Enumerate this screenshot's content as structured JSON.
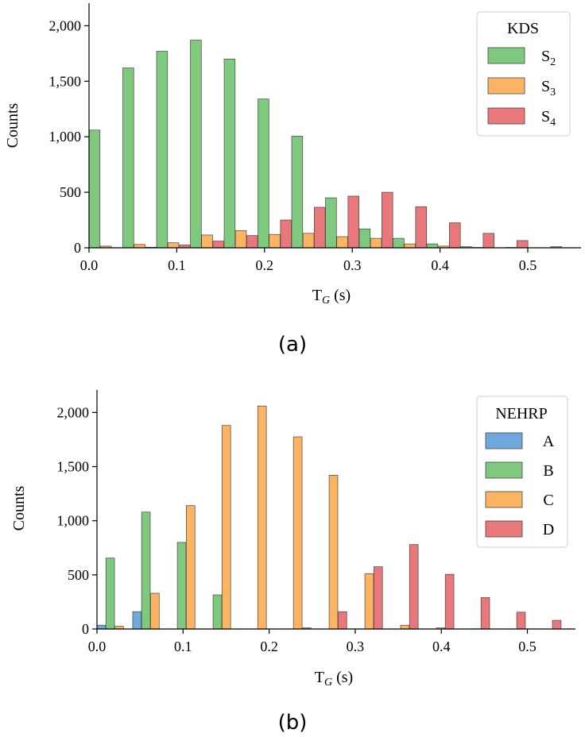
{
  "panels": [
    {
      "panel_label": "(a)",
      "legend_title": "KDS",
      "legend_labels": [
        {
          "base": "S",
          "sub": "2"
        },
        {
          "base": "S",
          "sub": "3"
        },
        {
          "base": "S",
          "sub": "4"
        }
      ]
    },
    {
      "panel_label": "(b)",
      "legend_title": "NEHRP",
      "legend_labels": [
        {
          "base": "A",
          "sub": ""
        },
        {
          "base": "B",
          "sub": ""
        },
        {
          "base": "C",
          "sub": ""
        },
        {
          "base": "D",
          "sub": ""
        }
      ]
    }
  ],
  "chart_data": [
    {
      "type": "bar",
      "title": "",
      "xlabel": "T_G (s)",
      "ylabel": "Counts",
      "xlim": [
        0.0,
        0.55
      ],
      "ylim": [
        0,
        2200
      ],
      "xticks": [
        0.0,
        0.1,
        0.2,
        0.3,
        0.4,
        0.5
      ],
      "xtick_labels": [
        "0.0",
        "0.1",
        "0.2",
        "0.3",
        "0.4",
        "0.5"
      ],
      "yticks": [
        0,
        500,
        1000,
        1500,
        2000
      ],
      "ytick_labels": [
        "0",
        "500",
        "1,000",
        "1,500",
        "2,000"
      ],
      "grid": false,
      "legend_position": "top-right",
      "bin_width": 0.0385,
      "bin_starts": [
        0.0,
        0.0385,
        0.077,
        0.1155,
        0.154,
        0.1925,
        0.231,
        0.2695,
        0.308,
        0.3465,
        0.385,
        0.4235,
        0.462,
        0.5005
      ],
      "series": [
        {
          "name": "S2",
          "color": "#7fc97f",
          "values": [
            1060,
            1620,
            1770,
            1870,
            1700,
            1340,
            1005,
            450,
            170,
            85,
            35,
            10,
            0,
            0
          ]
        },
        {
          "name": "S3",
          "color": "#fdb462",
          "values": [
            15,
            30,
            45,
            115,
            155,
            120,
            130,
            100,
            85,
            35,
            15,
            3,
            3,
            0
          ]
        },
        {
          "name": "S4",
          "color": "#e8787c",
          "values": [
            0,
            5,
            25,
            60,
            110,
            250,
            365,
            465,
            500,
            370,
            225,
            130,
            65,
            10
          ]
        }
      ]
    },
    {
      "type": "bar",
      "title": "",
      "xlabel": "T_G (s)",
      "ylabel": "Counts",
      "xlim": [
        0.0,
        0.55
      ],
      "ylim": [
        0,
        2200
      ],
      "xticks": [
        0.0,
        0.1,
        0.2,
        0.3,
        0.4,
        0.5
      ],
      "xtick_labels": [
        "0.0",
        "0.1",
        "0.2",
        "0.3",
        "0.4",
        "0.5"
      ],
      "yticks": [
        0,
        500,
        1000,
        1500,
        2000
      ],
      "ytick_labels": [
        "0",
        "500",
        "1,000",
        "1,500",
        "2,000"
      ],
      "grid": false,
      "legend_position": "top-right",
      "bin_width": 0.0415,
      "bin_starts": [
        0.0,
        0.0415,
        0.083,
        0.1245,
        0.166,
        0.2075,
        0.249,
        0.2905,
        0.332,
        0.3735,
        0.415,
        0.4565,
        0.498
      ],
      "series": [
        {
          "name": "A",
          "color": "#6fa8dc",
          "values": [
            35,
            160,
            0,
            0,
            0,
            0,
            0,
            0,
            0,
            0,
            0,
            0,
            0
          ]
        },
        {
          "name": "B",
          "color": "#7fc97f",
          "values": [
            655,
            1080,
            800,
            315,
            0,
            0,
            0,
            0,
            0,
            0,
            0,
            0,
            0
          ]
        },
        {
          "name": "C",
          "color": "#fdb462",
          "values": [
            25,
            330,
            1140,
            1880,
            2060,
            1775,
            1420,
            510,
            35,
            10,
            2,
            0,
            0
          ]
        },
        {
          "name": "D",
          "color": "#e8787c",
          "values": [
            0,
            0,
            0,
            0,
            0,
            10,
            160,
            575,
            780,
            505,
            290,
            155,
            80
          ]
        }
      ]
    }
  ]
}
